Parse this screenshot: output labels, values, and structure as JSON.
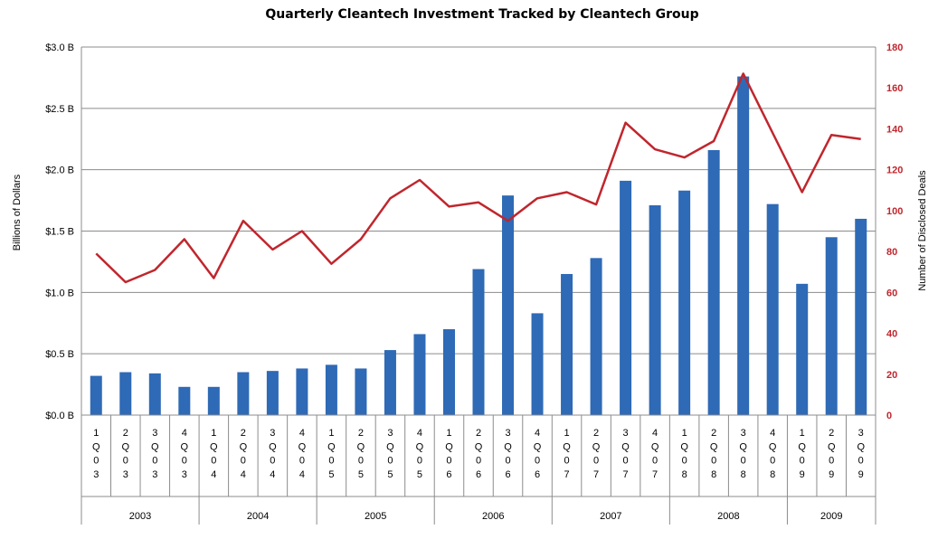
{
  "chart_data": {
    "type": "bar",
    "title": "Quarterly Cleantech Investment Tracked by Cleantech Group",
    "ylabel": "Billions of Dollars",
    "y2label": "Number of Disclosed Deals",
    "ylim": [
      0,
      3.0
    ],
    "y2lim": [
      0,
      180
    ],
    "y_ticks": [
      "$0.0 B",
      "$0.5 B",
      "$1.0 B",
      "$1.5 B",
      "$2.0 B",
      "$2.5 B",
      "$3.0 B"
    ],
    "y2_ticks": [
      "0",
      "20",
      "40",
      "60",
      "80",
      "100",
      "120",
      "140",
      "160",
      "180"
    ],
    "grid": true,
    "categories": [
      "1Q03",
      "2Q03",
      "3Q03",
      "4Q03",
      "1Q04",
      "2Q04",
      "3Q04",
      "4Q04",
      "1Q05",
      "2Q05",
      "3Q05",
      "4Q05",
      "1Q06",
      "2Q06",
      "3Q06",
      "4Q06",
      "1Q07",
      "2Q07",
      "3Q07",
      "4Q07",
      "1Q08",
      "2Q08",
      "3Q08",
      "4Q08",
      "1Q09",
      "2Q09",
      "3Q09"
    ],
    "years": [
      "2003",
      "2004",
      "2005",
      "2006",
      "2007",
      "2008",
      "2009"
    ],
    "series": [
      {
        "type": "bar",
        "axis": "left",
        "color": "#2e6ab6",
        "values": [
          0.32,
          0.35,
          0.34,
          0.23,
          0.23,
          0.35,
          0.36,
          0.38,
          0.41,
          0.38,
          0.53,
          0.66,
          0.7,
          1.19,
          1.79,
          0.83,
          1.15,
          1.28,
          1.91,
          1.71,
          1.83,
          2.16,
          2.76,
          1.72,
          1.07,
          1.45,
          1.6
        ]
      },
      {
        "type": "line",
        "axis": "right",
        "color": "#c0262d",
        "values": [
          79,
          65,
          71,
          86,
          67,
          95,
          81,
          90,
          74,
          86,
          106,
          115,
          102,
          104,
          95,
          106,
          109,
          103,
          143,
          130,
          126,
          134,
          167,
          138,
          109,
          137,
          135
        ]
      }
    ]
  }
}
